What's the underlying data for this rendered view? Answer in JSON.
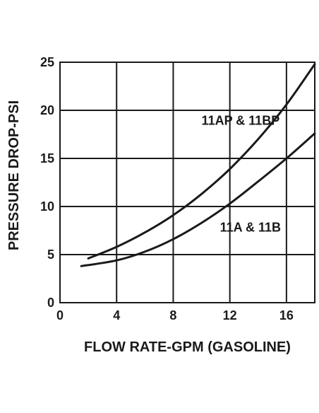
{
  "chart_data": {
    "type": "line",
    "xlabel": "FLOW RATE-GPM (GASOLINE)",
    "ylabel": "PRESSURE DROP-PSI",
    "xlim": [
      0,
      18
    ],
    "ylim": [
      0,
      25
    ],
    "x_ticks": [
      0,
      4,
      8,
      12,
      16
    ],
    "y_ticks": [
      0,
      5,
      10,
      15,
      20,
      25
    ],
    "grid": true,
    "colors": {
      "line": "#1a1a1a",
      "grid": "#1a1a1a",
      "text": "#1a1a1a"
    },
    "series": [
      {
        "name": "11AP & 11BP",
        "x": [
          2,
          4,
          6,
          8,
          10,
          12,
          14,
          16,
          18
        ],
        "y": [
          4.6,
          5.8,
          7.3,
          9.1,
          11.3,
          13.9,
          17.0,
          20.6,
          24.8
        ]
      },
      {
        "name": "11A & 11B",
        "x": [
          1.5,
          4,
          6,
          8,
          10,
          12,
          14,
          16,
          18
        ],
        "y": [
          3.8,
          4.4,
          5.3,
          6.6,
          8.3,
          10.3,
          12.6,
          15.0,
          17.6
        ]
      }
    ]
  }
}
